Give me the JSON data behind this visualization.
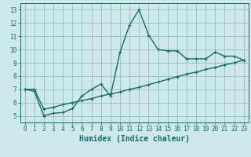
{
  "title": "",
  "xlabel": "Humidex (Indice chaleur)",
  "ylabel": "",
  "bg_color": "#cce8e8",
  "line_color": "#1a6b6b",
  "grid_color": "#99bbbb",
  "xlim": [
    -0.5,
    23.5
  ],
  "ylim": [
    4.5,
    13.5
  ],
  "xticks": [
    0,
    1,
    2,
    3,
    4,
    5,
    6,
    7,
    8,
    9,
    10,
    11,
    12,
    13,
    14,
    15,
    16,
    17,
    18,
    19,
    20,
    21,
    22,
    23
  ],
  "yticks": [
    5,
    6,
    7,
    8,
    9,
    10,
    11,
    12,
    13
  ],
  "line1_x": [
    0,
    1,
    2,
    3,
    4,
    5,
    6,
    7,
    8,
    9,
    10,
    11,
    12,
    13,
    14,
    15,
    16,
    17,
    18,
    19,
    20,
    21,
    22,
    23
  ],
  "line1_y": [
    7.0,
    6.85,
    5.0,
    5.2,
    5.25,
    5.55,
    6.5,
    7.0,
    7.4,
    6.5,
    9.8,
    11.85,
    13.0,
    11.1,
    10.0,
    9.9,
    9.9,
    9.3,
    9.3,
    9.3,
    9.8,
    9.5,
    9.5,
    9.2
  ],
  "line2_x": [
    0,
    1,
    2,
    3,
    4,
    5,
    6,
    7,
    8,
    9,
    10,
    11,
    12,
    13,
    14,
    15,
    16,
    17,
    18,
    19,
    20,
    21,
    22,
    23
  ],
  "line2_y": [
    7.0,
    7.0,
    5.5,
    5.65,
    5.85,
    6.0,
    6.15,
    6.3,
    6.5,
    6.65,
    6.8,
    7.0,
    7.15,
    7.35,
    7.55,
    7.75,
    7.95,
    8.15,
    8.3,
    8.5,
    8.65,
    8.85,
    9.0,
    9.2
  ],
  "marker": "+",
  "markersize": 3,
  "linewidth": 1.0,
  "xlabel_fontsize": 7,
  "tick_fontsize": 5.5
}
